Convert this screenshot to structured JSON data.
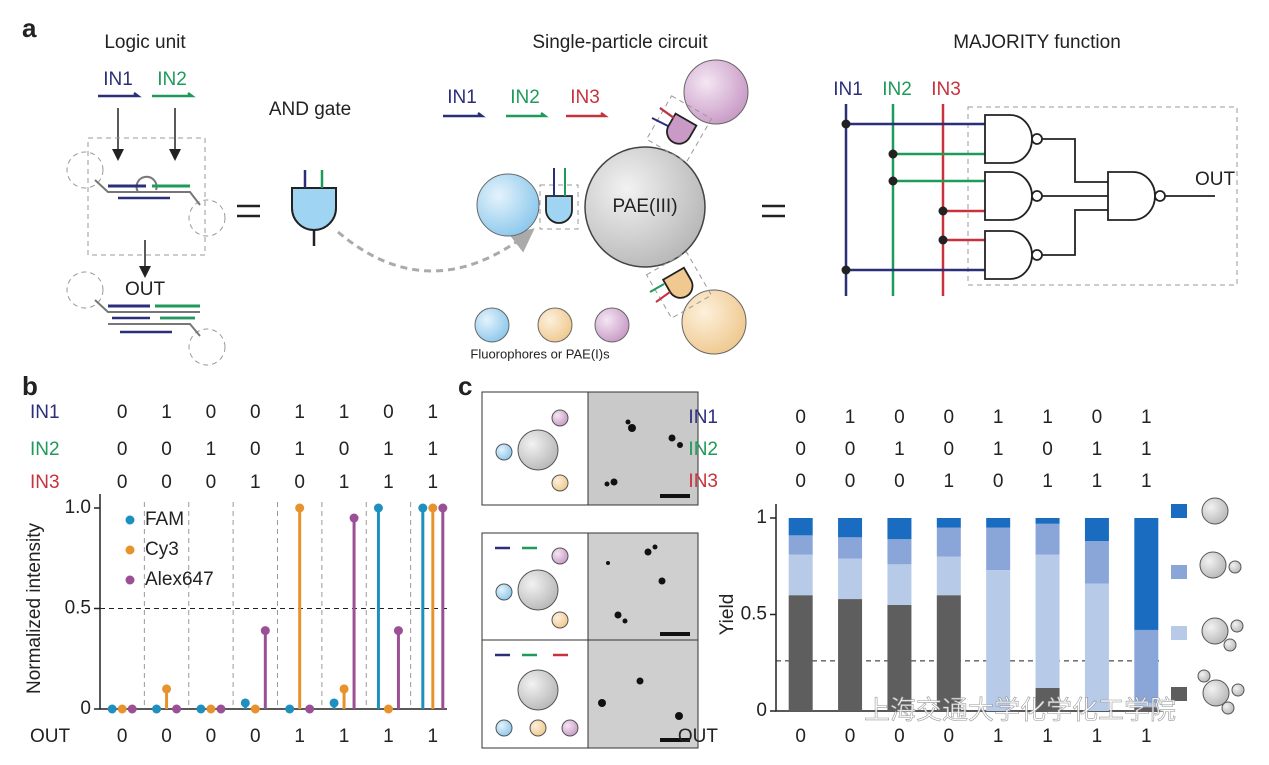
{
  "panel_a": {
    "label": "a",
    "logic_unit": {
      "title": "Logic unit",
      "inputs": [
        "IN1",
        "IN2"
      ],
      "output": "OUT"
    },
    "gate": {
      "title": "AND gate"
    },
    "circuit": {
      "title": "Single-particle circuit",
      "inputs": [
        "IN1",
        "IN2",
        "IN3"
      ],
      "core": "PAE(III)",
      "caption": "Fluorophores or PAE(I)s"
    },
    "majority": {
      "title": "MAJORITY function",
      "inputs": [
        "IN1",
        "IN2",
        "IN3"
      ],
      "output": "OUT"
    }
  },
  "panel_b": {
    "label": "b",
    "truth_table": {
      "rows": [
        {
          "label": "IN1",
          "color": "#2b2f7a",
          "values": [
            0,
            1,
            0,
            0,
            1,
            1,
            0,
            1
          ]
        },
        {
          "label": "IN2",
          "color": "#1e9a5a",
          "values": [
            0,
            0,
            1,
            0,
            1,
            0,
            1,
            1
          ]
        },
        {
          "label": "IN3",
          "color": "#c8323c",
          "values": [
            0,
            0,
            0,
            1,
            0,
            1,
            1,
            1
          ]
        }
      ],
      "output": {
        "label": "OUT",
        "values": [
          0,
          0,
          0,
          0,
          1,
          1,
          1,
          1
        ]
      }
    }
  },
  "panel_c": {
    "label": "c",
    "truth_table": {
      "rows": [
        {
          "label": "IN1",
          "color": "#2b2f7a",
          "values": [
            0,
            1,
            0,
            0,
            1,
            1,
            0,
            1
          ]
        },
        {
          "label": "IN2",
          "color": "#1e9a5a",
          "values": [
            0,
            0,
            1,
            0,
            1,
            0,
            1,
            1
          ]
        },
        {
          "label": "IN3",
          "color": "#c8323c",
          "values": [
            0,
            0,
            0,
            1,
            0,
            1,
            1,
            1
          ]
        }
      ],
      "output": {
        "label": "OUT",
        "values": [
          0,
          0,
          0,
          0,
          1,
          1,
          1,
          1
        ]
      }
    }
  },
  "watermark": "上海交通大学化学化工学院",
  "chart_data": [
    {
      "type": "stem",
      "ylabel": "Normalized intensity",
      "legend": "upper-left",
      "series": [
        {
          "name": "FAM",
          "color": "#1f8fbf",
          "values": [
            0,
            0,
            0,
            0.03,
            0,
            0.03,
            1.0,
            1.0
          ]
        },
        {
          "name": "Cy3",
          "color": "#e8922e",
          "values": [
            0,
            0.1,
            0,
            0,
            1.0,
            0.1,
            0,
            1.0
          ]
        },
        {
          "name": "Alex647",
          "color": "#9b4f96",
          "values": [
            0,
            0,
            0,
            0.39,
            0,
            0.95,
            0.39,
            1.0
          ]
        }
      ],
      "ylim": [
        0,
        1
      ],
      "yticks": [
        0,
        0.5,
        {
          "value": 1,
          "label": "1.0"
        }
      ],
      "threshold": 0.5
    },
    {
      "type": "bar",
      "stacked": true,
      "ylabel": "Yield",
      "legend": "right",
      "series": [
        {
          "color": "#5e5e5e",
          "values": [
            0.6,
            0.58,
            0.55,
            0.6,
            0,
            0.12,
            0,
            0.02
          ]
        },
        {
          "color": "#b7cbe9",
          "values": [
            0.21,
            0.21,
            0.21,
            0.2,
            0.73,
            0.69,
            0.66,
            0.02
          ]
        },
        {
          "color": "#8aa6d9",
          "values": [
            0.1,
            0.11,
            0.13,
            0.15,
            0.22,
            0.16,
            0.22,
            0.38
          ]
        },
        {
          "color": "#1a6cc0",
          "values": [
            0.09,
            0.1,
            0.11,
            0.05,
            0.05,
            0.03,
            0.12,
            0.58
          ]
        }
      ],
      "ylim": [
        0,
        1
      ],
      "yticks": [
        0,
        0.5,
        1
      ],
      "threshold": 0.26
    }
  ]
}
